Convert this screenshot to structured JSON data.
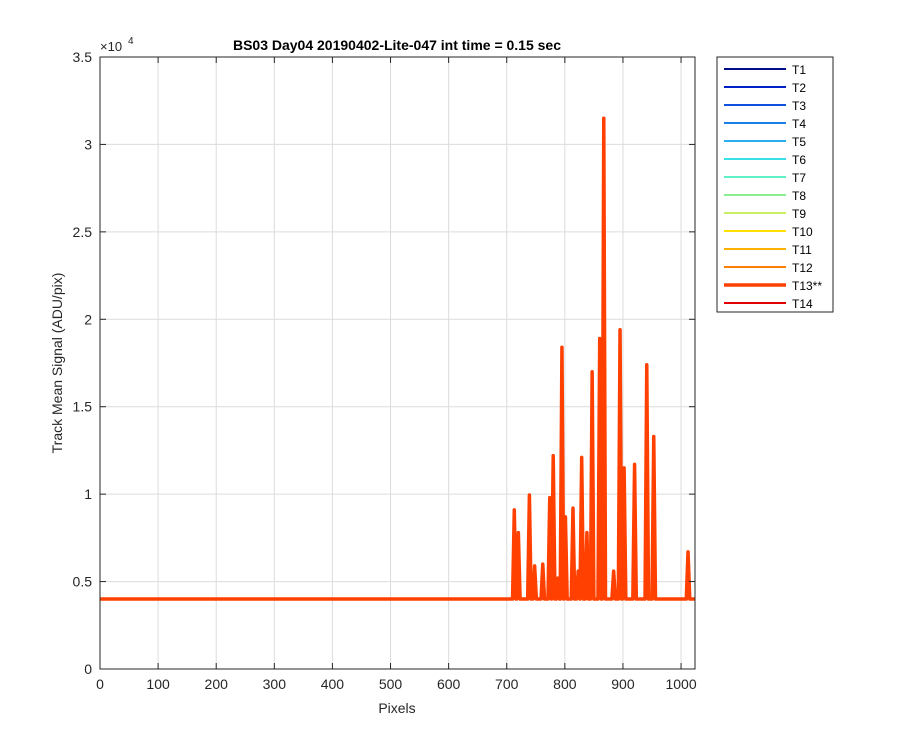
{
  "chart_data": {
    "type": "line",
    "title": "BS03 Day04 20190402-Lite-047 int time = 0.15 sec",
    "xlabel": "Pixels",
    "ylabel": "Track Mean Signal (ADU/pix)",
    "xlim": [
      0,
      1024
    ],
    "ylim": [
      0,
      35000
    ],
    "y_exponent_label": "×10",
    "y_exponent_power": "4",
    "xticks": [
      0,
      100,
      200,
      300,
      400,
      500,
      600,
      700,
      800,
      900,
      1000
    ],
    "xtick_labels": [
      "0",
      "100",
      "200",
      "300",
      "400",
      "500",
      "600",
      "700",
      "800",
      "900",
      "1000"
    ],
    "yticks": [
      0,
      5000,
      10000,
      15000,
      20000,
      25000,
      30000,
      35000
    ],
    "ytick_labels": [
      "0",
      "0.5",
      "1",
      "1.5",
      "2",
      "2.5",
      "3",
      "3.5"
    ],
    "grid": true,
    "legend_position": "outside-right",
    "baseline": 4000,
    "series": [
      {
        "name": "T1",
        "color": "#000d8a",
        "width": 1
      },
      {
        "name": "T2",
        "color": "#0020c8",
        "width": 1
      },
      {
        "name": "T3",
        "color": "#1050e0",
        "width": 1
      },
      {
        "name": "T4",
        "color": "#1a80e8",
        "width": 1
      },
      {
        "name": "T5",
        "color": "#28b0f0",
        "width": 1
      },
      {
        "name": "T6",
        "color": "#38e0e8",
        "width": 1
      },
      {
        "name": "T7",
        "color": "#60f0c8",
        "width": 1
      },
      {
        "name": "T8",
        "color": "#88f090",
        "width": 1
      },
      {
        "name": "T9",
        "color": "#c8f060",
        "width": 1
      },
      {
        "name": "T10",
        "color": "#ffe000",
        "width": 1
      },
      {
        "name": "T11",
        "color": "#ffb000",
        "width": 1
      },
      {
        "name": "T12",
        "color": "#ff8000",
        "width": 1
      },
      {
        "name": "T13**",
        "color": "#ff4000",
        "width": 3.5,
        "highlight": true,
        "peaks": [
          {
            "x": 713,
            "y": 9100
          },
          {
            "x": 720,
            "y": 7800
          },
          {
            "x": 739,
            "y": 9950
          },
          {
            "x": 748,
            "y": 5900
          },
          {
            "x": 762,
            "y": 6000
          },
          {
            "x": 774,
            "y": 9800
          },
          {
            "x": 780,
            "y": 12200
          },
          {
            "x": 788,
            "y": 5200
          },
          {
            "x": 795,
            "y": 18400
          },
          {
            "x": 801,
            "y": 8700
          },
          {
            "x": 814,
            "y": 9200
          },
          {
            "x": 823,
            "y": 5600
          },
          {
            "x": 829,
            "y": 12100
          },
          {
            "x": 838,
            "y": 7800
          },
          {
            "x": 847,
            "y": 17000
          },
          {
            "x": 860,
            "y": 18900
          },
          {
            "x": 867,
            "y": 31500
          },
          {
            "x": 884,
            "y": 5600
          },
          {
            "x": 895,
            "y": 19400
          },
          {
            "x": 902,
            "y": 11500
          },
          {
            "x": 920,
            "y": 11700
          },
          {
            "x": 941,
            "y": 17400
          },
          {
            "x": 953,
            "y": 13300
          },
          {
            "x": 1012,
            "y": 6700
          }
        ]
      },
      {
        "name": "T14",
        "color": "#e00000",
        "width": 1
      }
    ]
  }
}
